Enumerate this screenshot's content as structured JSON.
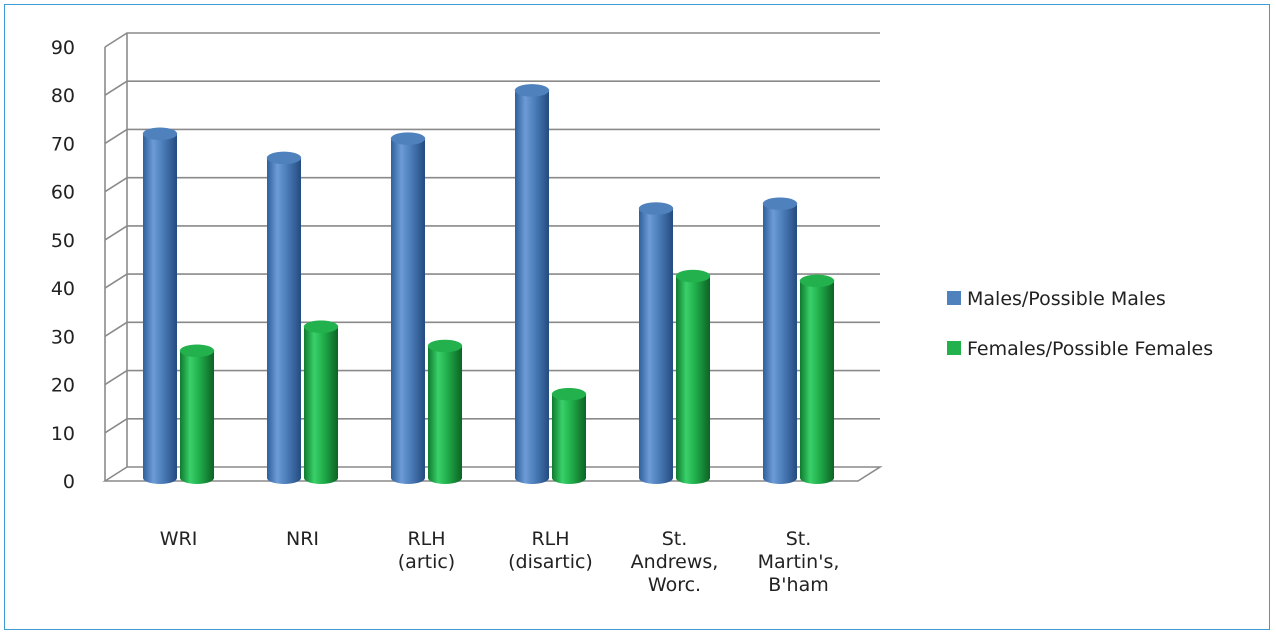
{
  "chart_data": {
    "type": "bar",
    "categories": [
      [
        "WRI"
      ],
      [
        "NRI"
      ],
      [
        "RLH",
        "(artic)"
      ],
      [
        "RLH",
        "(disartic)"
      ],
      [
        "St.",
        "Andrews,",
        "Worc."
      ],
      [
        "St.",
        "Martin's,",
        "B'ham"
      ]
    ],
    "series": [
      {
        "name": "Males/Possible Males",
        "values": [
          72,
          67,
          71,
          81,
          56.5,
          57.5
        ],
        "color": "#4f81bd"
      },
      {
        "name": "Females/Possible Females",
        "values": [
          27,
          32,
          28,
          18,
          42.5,
          41.5
        ],
        "color": "#22b14c"
      }
    ],
    "ylim": [
      0,
      90
    ],
    "yticks": [
      "0",
      "10",
      "20",
      "30",
      "40",
      "50",
      "60",
      "70",
      "80",
      "90"
    ],
    "grid": true,
    "legend_position": "right",
    "style": "3d-cylinder"
  }
}
